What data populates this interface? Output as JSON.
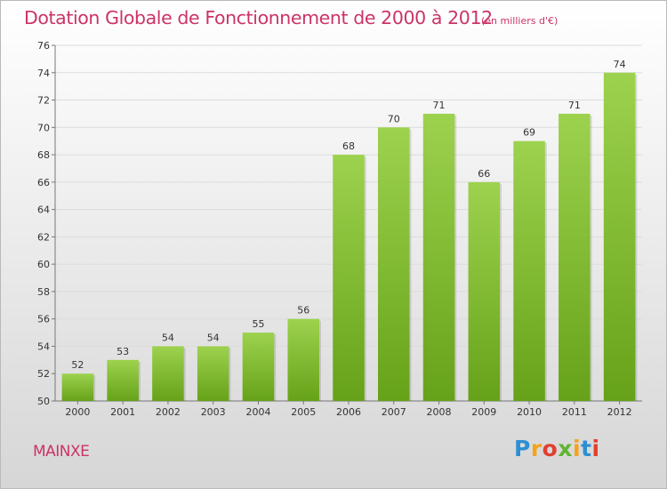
{
  "header": {
    "title": "Dotation Globale de Fonctionnement de 2000 à 2012",
    "unit": "(en milliers d'€)"
  },
  "footer": {
    "commune": "MAINXE",
    "brand": "Proxiti"
  },
  "colors": {
    "title": "#cc3366",
    "bar_light": "#9dd24e",
    "bar_dark": "#66a219",
    "brand": [
      "#2d8fd3",
      "#f7a21b",
      "#e04030",
      "#5fb530",
      "#f7a21b",
      "#2d8fd3",
      "#e04030"
    ]
  },
  "chart_data": {
    "type": "bar",
    "title": "Dotation Globale de Fonctionnement de 2000 à 2012",
    "subtitle": "(en milliers d'€)",
    "categories": [
      "2000",
      "2001",
      "2002",
      "2003",
      "2004",
      "2005",
      "2006",
      "2007",
      "2008",
      "2009",
      "2010",
      "2011",
      "2012"
    ],
    "values": [
      52,
      53,
      54,
      54,
      55,
      56,
      68,
      70,
      71,
      66,
      69,
      71,
      74
    ],
    "ylim": [
      50,
      76
    ],
    "yticks": [
      50,
      52,
      54,
      56,
      58,
      60,
      62,
      64,
      66,
      68,
      70,
      72,
      74,
      76
    ],
    "grid": true,
    "legend": "none",
    "xlabel": "",
    "ylabel": ""
  }
}
